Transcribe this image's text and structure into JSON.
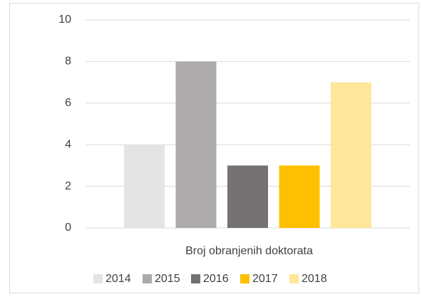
{
  "chart_data": {
    "type": "bar",
    "categories": [
      "Broj obranjenih doktorata"
    ],
    "series": [
      {
        "name": "2014",
        "color": "#e4e4e4",
        "values": [
          4
        ]
      },
      {
        "name": "2015",
        "color": "#aeaaaa",
        "values": [
          8
        ]
      },
      {
        "name": "2016",
        "color": "#767171",
        "values": [
          3
        ]
      },
      {
        "name": "2017",
        "color": "#ffc000",
        "values": [
          3
        ]
      },
      {
        "name": "2018",
        "color": "#ffe699",
        "values": [
          7
        ]
      }
    ],
    "ylim": [
      0,
      10
    ],
    "yticks": [
      0,
      2,
      4,
      6,
      8,
      10
    ],
    "grid": true,
    "legend": "bottom"
  }
}
